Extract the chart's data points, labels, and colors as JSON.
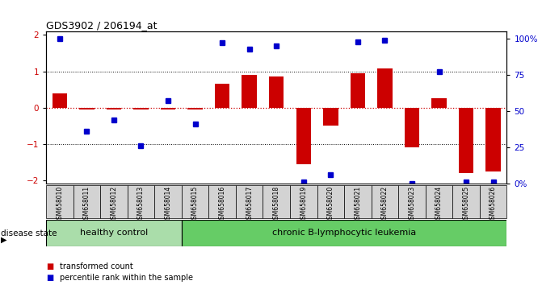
{
  "title": "GDS3902 / 206194_at",
  "samples": [
    "GSM658010",
    "GSM658011",
    "GSM658012",
    "GSM658013",
    "GSM658014",
    "GSM658015",
    "GSM658016",
    "GSM658017",
    "GSM658018",
    "GSM658019",
    "GSM658020",
    "GSM658021",
    "GSM658022",
    "GSM658023",
    "GSM658024",
    "GSM658025",
    "GSM658026"
  ],
  "bar_values": [
    0.38,
    -0.05,
    -0.05,
    -0.05,
    -0.05,
    -0.05,
    0.65,
    0.9,
    0.85,
    -1.55,
    -0.5,
    0.95,
    1.08,
    -1.1,
    0.25,
    -1.8,
    -1.75
  ],
  "dot_values": [
    1.9,
    -0.65,
    -0.35,
    -1.05,
    0.2,
    -0.45,
    1.78,
    1.6,
    1.7,
    -2.05,
    -1.85,
    1.82,
    1.85,
    -2.1,
    1.0,
    -2.05,
    -2.05
  ],
  "bar_color": "#cc0000",
  "dot_color": "#0000cc",
  "ylim": [
    -2.1,
    2.1
  ],
  "y2lim": [
    0,
    105
  ],
  "yticks": [
    -2,
    -1,
    0,
    1,
    2
  ],
  "y2ticks": [
    0,
    25,
    50,
    75,
    100
  ],
  "y2ticklabels": [
    "0%",
    "25",
    "50",
    "75",
    "100%"
  ],
  "dotted_lines_black": [
    -1.0,
    1.0
  ],
  "zero_line_y": 0.0,
  "group_labels": [
    "healthy control",
    "chronic B-lymphocytic leukemia"
  ],
  "hc_count": 5,
  "group_color_hc": "#aaddaa",
  "group_color_leuk": "#66cc66",
  "disease_state_label": "disease state",
  "legend_bar_label": "transformed count",
  "legend_dot_label": "percentile rank within the sample",
  "bar_color_left_axis": "#cc0000",
  "dot_color_right_axis": "#0000cc",
  "tick_box_color": "#d3d3d3",
  "bar_width": 0.55
}
